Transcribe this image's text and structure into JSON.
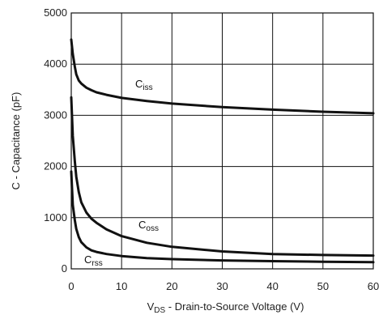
{
  "chart_data": {
    "type": "line",
    "xlabel": {
      "main": "V",
      "sub": "DS",
      "rest": " - Drain-to-Source Voltage (V)"
    },
    "ylabel": "C - Capacitance (pF)",
    "xlim": [
      0,
      60
    ],
    "ylim": [
      0,
      5000
    ],
    "xticks": [
      0,
      10,
      20,
      30,
      40,
      50,
      60
    ],
    "yticks": [
      0,
      1000,
      2000,
      3000,
      4000,
      5000
    ],
    "xtick_labels": [
      "0",
      "10",
      "20",
      "30",
      "40",
      "50",
      "60"
    ],
    "ytick_labels": [
      "0",
      "1000",
      "2000",
      "3000",
      "4000",
      "5000"
    ],
    "grid": true,
    "series": [
      {
        "name": "Ciss",
        "label_main": "C",
        "label_sub": "iss",
        "x": [
          0,
          0.3,
          0.7,
          1,
          1.5,
          2,
          3,
          4,
          5,
          7,
          10,
          15,
          20,
          30,
          40,
          50,
          60
        ],
        "y": [
          4480,
          4200,
          3950,
          3800,
          3680,
          3620,
          3540,
          3490,
          3450,
          3400,
          3340,
          3280,
          3230,
          3160,
          3110,
          3070,
          3040
        ]
      },
      {
        "name": "Coss",
        "label_main": "C",
        "label_sub": "oss",
        "x": [
          0,
          0.3,
          0.7,
          1,
          1.5,
          2,
          3,
          4,
          5,
          7,
          10,
          15,
          20,
          30,
          40,
          50,
          60
        ],
        "y": [
          3350,
          2600,
          2100,
          1800,
          1500,
          1300,
          1100,
          980,
          900,
          770,
          640,
          510,
          430,
          340,
          290,
          270,
          260
        ]
      },
      {
        "name": "Crss",
        "label_main": "C",
        "label_sub": "rss",
        "x": [
          0,
          0.3,
          0.7,
          1,
          1.5,
          2,
          3,
          4,
          5,
          7,
          10,
          15,
          20,
          30,
          40,
          50,
          60
        ],
        "y": [
          1900,
          1250,
          950,
          780,
          620,
          520,
          420,
          360,
          330,
          290,
          250,
          210,
          190,
          165,
          150,
          140,
          130
        ]
      }
    ]
  }
}
